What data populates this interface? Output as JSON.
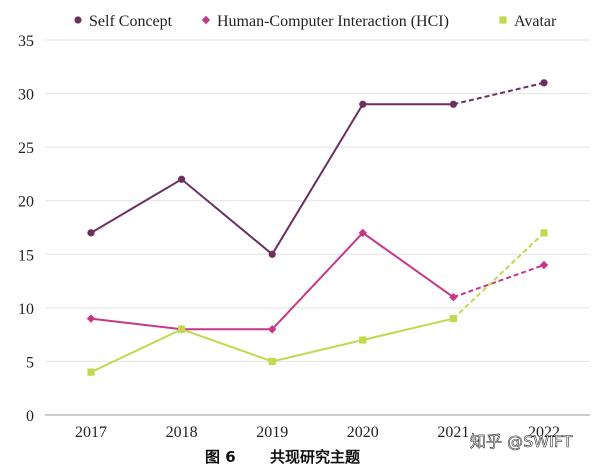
{
  "chart_data": {
    "type": "line",
    "title": "",
    "xlabel": "",
    "ylabel": "",
    "categories": [
      "2017",
      "2018",
      "2019",
      "2020",
      "2021",
      "2022"
    ],
    "ylim": [
      0,
      35
    ],
    "yticks": [
      0,
      5,
      10,
      15,
      20,
      25,
      30,
      35
    ],
    "grid": "horizontal",
    "legend": "top",
    "dashed_from_index": 4,
    "series": [
      {
        "name": "Self Concept",
        "color": "#6b3060",
        "marker": "circle",
        "values": [
          17,
          22,
          15,
          29,
          29,
          31
        ]
      },
      {
        "name": "Human-Computer Interaction (HCI)",
        "color": "#c8368a",
        "marker": "diamond",
        "values": [
          9,
          8,
          8,
          17,
          11,
          14
        ]
      },
      {
        "name": "Avatar",
        "color": "#c4d84f",
        "marker": "square",
        "values": [
          4,
          8,
          5,
          7,
          9,
          17
        ]
      }
    ]
  },
  "caption": {
    "label": "图 6",
    "text": "共现研究主题"
  },
  "watermark": "知乎 @SWIFT"
}
